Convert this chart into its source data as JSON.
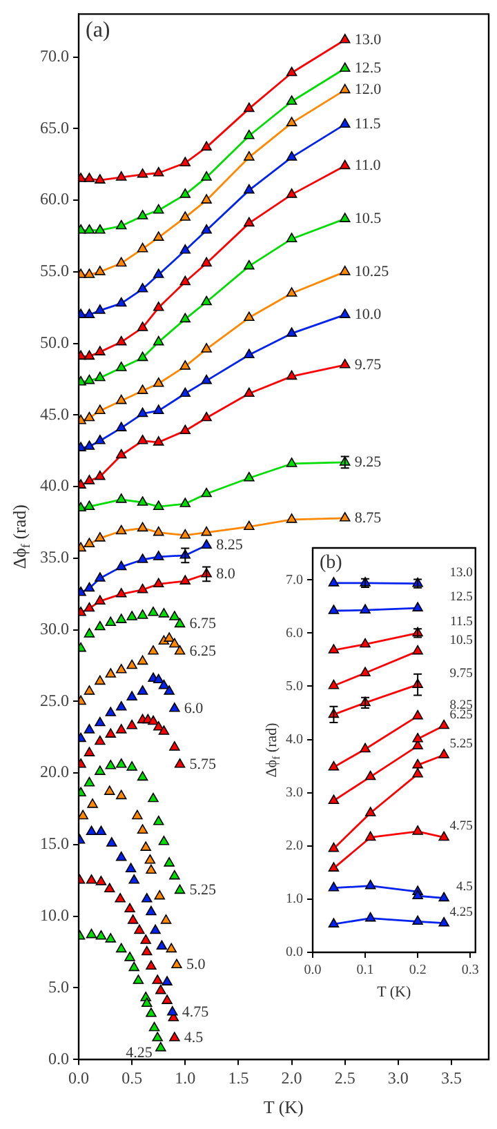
{
  "chart_data": [
    {
      "type": "line",
      "xlabel": "T (K)",
      "ylabel": "Δϕ$_{f}$ (rad)",
      "annotations": [
        "(a)"
      ],
      "marker": "triangle",
      "line_style": "solid",
      "xlim": [
        0,
        3.85
      ],
      "ylim": [
        0,
        73
      ],
      "xticks": [
        {
          "value": 0,
          "label": "0.0"
        },
        {
          "value": 0.5,
          "label": "0.5"
        },
        {
          "value": 1,
          "label": "1.0"
        },
        {
          "value": 1.5,
          "label": "1.5"
        },
        {
          "value": 2,
          "label": "2.0"
        },
        {
          "value": 2.5,
          "label": "2.5"
        },
        {
          "value": 3,
          "label": "3.0"
        },
        {
          "value": 3.5,
          "label": "3.5"
        }
      ],
      "yticks": [
        {
          "value": 0,
          "label": "0.0"
        },
        {
          "value": 5,
          "label": "5.0"
        },
        {
          "value": 10,
          "label": "10.0"
        },
        {
          "value": 15,
          "label": "15.0"
        },
        {
          "value": 20,
          "label": "20.0"
        },
        {
          "value": 25,
          "label": "25.0"
        },
        {
          "value": 30,
          "label": "30.0"
        },
        {
          "value": 35,
          "label": "35.0"
        },
        {
          "value": 40,
          "label": "40.0"
        },
        {
          "value": 45,
          "label": "45.0"
        },
        {
          "value": 50,
          "label": "50.0"
        },
        {
          "value": 55,
          "label": "55.0"
        },
        {
          "value": 60,
          "label": "60.0"
        },
        {
          "value": 65,
          "label": "65.0"
        },
        {
          "value": 70,
          "label": "70.0"
        }
      ],
      "x": [
        0.02,
        0.1,
        0.2,
        0.4,
        0.6,
        0.75,
        1.0,
        1.2,
        1.6,
        2.0,
        2.5
      ],
      "series": [
        {
          "name": "13.0",
          "color": "#ff0000",
          "values": [
            61.5,
            61.5,
            61.4,
            61.6,
            61.8,
            61.9,
            62.6,
            63.7,
            66.4,
            68.9,
            71.2
          ]
        },
        {
          "name": "12.5",
          "color": "#00dd00",
          "values": [
            57.9,
            57.9,
            57.9,
            58.2,
            58.9,
            59.3,
            60.4,
            61.6,
            64.5,
            66.9,
            69.2
          ]
        },
        {
          "name": "12.0",
          "color": "#ff8800",
          "values": [
            54.8,
            54.8,
            55.0,
            55.6,
            56.6,
            57.4,
            58.8,
            60.0,
            63.0,
            65.4,
            67.7
          ]
        },
        {
          "name": "11.5",
          "color": "#0022ee",
          "values": [
            52.0,
            52.0,
            52.3,
            52.8,
            53.8,
            54.8,
            56.5,
            57.9,
            60.7,
            63.0,
            65.3
          ]
        },
        {
          "name": "11.0",
          "color": "#ff0000",
          "values": [
            49.1,
            49.1,
            49.4,
            50.1,
            51.1,
            52.5,
            54.3,
            55.6,
            58.4,
            60.4,
            62.4
          ]
        },
        {
          "name": "10.5",
          "color": "#00dd00",
          "values": [
            47.3,
            47.4,
            47.6,
            48.3,
            49.0,
            50.1,
            51.7,
            52.9,
            55.4,
            57.3,
            58.7
          ]
        },
        {
          "name": "10.25",
          "color": "#ff8800",
          "values": [
            44.6,
            44.8,
            45.3,
            46.0,
            46.7,
            47.2,
            48.4,
            49.6,
            51.8,
            53.5,
            55.0
          ]
        },
        {
          "name": "10.0",
          "color": "#0022ee",
          "values": [
            42.7,
            42.8,
            43.2,
            44.1,
            45.1,
            45.3,
            46.5,
            47.4,
            49.2,
            50.7,
            52.0
          ]
        },
        {
          "name": "9.75",
          "color": "#ff0000",
          "values": [
            40.1,
            40.4,
            40.7,
            42.2,
            43.2,
            43.1,
            43.9,
            44.8,
            46.5,
            47.7,
            48.5
          ]
        },
        {
          "name": "9.25",
          "color": "#00dd00",
          "x": [
            0.02,
            0.1,
            0.4,
            0.6,
            0.75,
            1.0,
            1.2,
            1.6,
            2.0,
            2.5
          ],
          "values": [
            38.5,
            38.6,
            39.1,
            38.9,
            38.6,
            38.8,
            39.5,
            40.6,
            41.6,
            41.7
          ],
          "errors": [
            null,
            null,
            null,
            null,
            null,
            null,
            null,
            null,
            null,
            0.4
          ]
        },
        {
          "name": "8.75",
          "color": "#ff8800",
          "values": [
            35.7,
            36.0,
            36.4,
            36.9,
            37.1,
            36.8,
            36.6,
            36.8,
            37.2,
            37.7,
            37.8
          ]
        },
        {
          "name": "8.25",
          "color": "#0022ee",
          "x": [
            0.02,
            0.1,
            0.2,
            0.4,
            0.6,
            0.75,
            1.0,
            1.2
          ],
          "values": [
            32.6,
            32.9,
            33.6,
            34.4,
            34.9,
            35.1,
            35.2,
            35.9
          ],
          "errors": [
            null,
            null,
            null,
            null,
            null,
            null,
            0.5,
            null
          ]
        },
        {
          "name": "8.0",
          "color": "#ff0000",
          "x": [
            0.02,
            0.1,
            0.2,
            0.4,
            0.6,
            0.75,
            1.0,
            1.2
          ],
          "values": [
            31.2,
            31.5,
            32.0,
            32.5,
            32.8,
            33.2,
            33.4,
            33.9
          ],
          "errors": [
            null,
            null,
            null,
            null,
            null,
            null,
            null,
            0.5
          ]
        },
        {
          "name": "6.75",
          "color": "#00dd00",
          "type": "scatter",
          "x": [
            0.02,
            0.1,
            0.2,
            0.3,
            0.4,
            0.5,
            0.6,
            0.7,
            0.8,
            0.9,
            0.95
          ],
          "values": [
            28.7,
            29.7,
            30.2,
            30.5,
            30.7,
            30.9,
            31.0,
            31.2,
            31.1,
            30.9,
            30.4
          ]
        },
        {
          "name": "6.25",
          "color": "#ff8800",
          "type": "scatter",
          "x": [
            0.02,
            0.1,
            0.2,
            0.3,
            0.4,
            0.5,
            0.6,
            0.7,
            0.8,
            0.85,
            0.9,
            0.95
          ],
          "values": [
            25.0,
            25.7,
            26.4,
            26.9,
            27.2,
            27.5,
            27.8,
            28.5,
            29.2,
            29.4,
            29.0,
            28.5
          ]
        },
        {
          "name": "6.0",
          "color": "#0022ee",
          "type": "scatter",
          "x": [
            0.02,
            0.1,
            0.2,
            0.3,
            0.4,
            0.5,
            0.6,
            0.7,
            0.75,
            0.8,
            0.85,
            0.9
          ],
          "values": [
            22.4,
            23.0,
            23.5,
            24.2,
            24.6,
            25.3,
            25.7,
            26.6,
            26.5,
            26.1,
            25.7,
            24.5
          ]
        },
        {
          "name": "5.75",
          "color": "#ff0000",
          "type": "scatter",
          "x": [
            0.02,
            0.1,
            0.2,
            0.3,
            0.4,
            0.5,
            0.6,
            0.65,
            0.7,
            0.75,
            0.8,
            0.9,
            0.95
          ],
          "values": [
            20.6,
            21.4,
            22.2,
            22.7,
            23.0,
            23.3,
            23.7,
            23.7,
            23.6,
            23.2,
            22.9,
            21.8,
            20.6
          ]
        },
        {
          "name": "5.25",
          "color": "#00dd00",
          "type": "scatter",
          "x": [
            0.02,
            0.1,
            0.2,
            0.3,
            0.4,
            0.5,
            0.6,
            0.7,
            0.75,
            0.8,
            0.85,
            0.9,
            0.95
          ],
          "values": [
            18.6,
            19.3,
            20.1,
            20.5,
            20.6,
            20.4,
            19.7,
            18.2,
            16.6,
            15.2,
            13.7,
            12.8,
            11.8
          ]
        },
        {
          "name": "5.0",
          "color": "#ff8800",
          "type": "scatter",
          "x": [
            0.04,
            0.13,
            0.29,
            0.4,
            0.55,
            0.6,
            0.63,
            0.67,
            0.68,
            0.76,
            0.82,
            0.87,
            0.92
          ],
          "values": [
            17.0,
            17.8,
            18.7,
            18.4,
            17.0,
            16.0,
            14.8,
            13.9,
            13.2,
            11.4,
            9.7,
            7.7,
            6.6
          ]
        },
        {
          "name": "4.75",
          "color": "#0022ee",
          "type": "scatter",
          "x": [
            0.01,
            0.12,
            0.21,
            0.31,
            0.4,
            0.49,
            0.52,
            0.64,
            0.68,
            0.72,
            0.78,
            0.83,
            0.88
          ],
          "values": [
            15.3,
            15.9,
            15.9,
            15.1,
            14.1,
            13.3,
            12.5,
            11.2,
            10.3,
            9.0,
            7.9,
            5.4,
            3.3
          ]
        },
        {
          "name": "4.5",
          "color": "#ff0000",
          "type": "scatter",
          "x": [
            0.01,
            0.12,
            0.21,
            0.29,
            0.39,
            0.48,
            0.51,
            0.57,
            0.63,
            0.64,
            0.68,
            0.74,
            0.77,
            0.83,
            0.89,
            0.9
          ],
          "values": [
            12.5,
            12.5,
            12.4,
            11.9,
            11.2,
            10.5,
            9.7,
            9.0,
            8.3,
            7.5,
            6.5,
            5.5,
            4.8,
            4.1,
            2.9,
            1.5
          ]
        },
        {
          "name": "4.25",
          "color": "#00dd00",
          "type": "scatter",
          "x": [
            0.01,
            0.12,
            0.21,
            0.3,
            0.4,
            0.48,
            0.52,
            0.56,
            0.63,
            0.64,
            0.68,
            0.71,
            0.74,
            0.77
          ],
          "values": [
            8.6,
            8.7,
            8.6,
            8.4,
            7.7,
            7.1,
            6.4,
            5.5,
            4.3,
            3.9,
            3.2,
            2.2,
            1.5,
            0.8
          ]
        }
      ]
    },
    {
      "type": "line",
      "xlabel": "T (K)",
      "ylabel": "Δϕ$_{f}$ (rad)",
      "annotations": [
        "(b)"
      ],
      "marker": "triangle",
      "line_style": "solid",
      "xlim": [
        0,
        0.31
      ],
      "ylim": [
        0,
        7.6
      ],
      "xticks": [
        {
          "value": 0,
          "label": "0.0"
        },
        {
          "value": 0.1,
          "label": "0.1"
        },
        {
          "value": 0.2,
          "label": "0.2"
        },
        {
          "value": 0.3,
          "label": "0.3"
        }
      ],
      "yticks": [
        {
          "value": 0,
          "label": "0.0"
        },
        {
          "value": 1,
          "label": "1.0"
        },
        {
          "value": 2,
          "label": "2.0"
        },
        {
          "value": 3,
          "label": "3.0"
        },
        {
          "value": 4,
          "label": "4.0"
        },
        {
          "value": 5,
          "label": "5.0"
        },
        {
          "value": 6,
          "label": "6.0"
        },
        {
          "value": 7,
          "label": "7.0"
        }
      ],
      "x": [
        0.04,
        0.1,
        0.2
      ],
      "series": [
        {
          "name": "13.0",
          "color": "#0022ee",
          "values": [
            6.94,
            6.94,
            6.93
          ],
          "errors": [
            null,
            0.08,
            0.08
          ]
        },
        {
          "name": "12.5",
          "color": "#0022ee",
          "values": [
            6.42,
            6.43,
            6.47
          ]
        },
        {
          "name": "11.5",
          "color": "#ff0000",
          "values": [
            5.68,
            5.79,
            6.0
          ],
          "errors": [
            null,
            null,
            0.08
          ]
        },
        {
          "name": "10.5",
          "color": "#ff0000",
          "values": [
            5.01,
            5.25,
            5.66
          ]
        },
        {
          "name": "9.75",
          "color": "#ff0000",
          "values": [
            4.47,
            4.69,
            5.03
          ],
          "errors": [
            0.15,
            0.1,
            0.2
          ]
        },
        {
          "name": "8.25",
          "color": "#ff0000",
          "values": [
            3.48,
            3.82,
            4.44
          ]
        },
        {
          "name": "6.25",
          "color": "#ff0000",
          "x": [
            0.04,
            0.11,
            0.2,
            0.2,
            0.25
          ],
          "values": [
            2.85,
            3.3,
            3.88,
            4.01,
            4.26
          ]
        },
        {
          "name": "5.25",
          "color": "#ff0000",
          "x": [
            0.04,
            0.11,
            0.2,
            0.2,
            0.25
          ],
          "values": [
            1.95,
            2.62,
            3.35,
            3.52,
            3.71
          ]
        },
        {
          "name": "4.75",
          "color": "#ff0000",
          "x": [
            0.04,
            0.11,
            0.2,
            0.25
          ],
          "values": [
            1.58,
            2.16,
            2.27,
            2.16
          ]
        },
        {
          "name": "4.5",
          "color": "#0022ee",
          "x": [
            0.04,
            0.11,
            0.2,
            0.2,
            0.25
          ],
          "values": [
            1.21,
            1.25,
            1.14,
            1.06,
            1.02
          ]
        },
        {
          "name": "4.25",
          "color": "#0022ee",
          "x": [
            0.04,
            0.11,
            0.2,
            0.25
          ],
          "values": [
            0.53,
            0.64,
            0.58,
            0.55
          ]
        }
      ]
    }
  ]
}
